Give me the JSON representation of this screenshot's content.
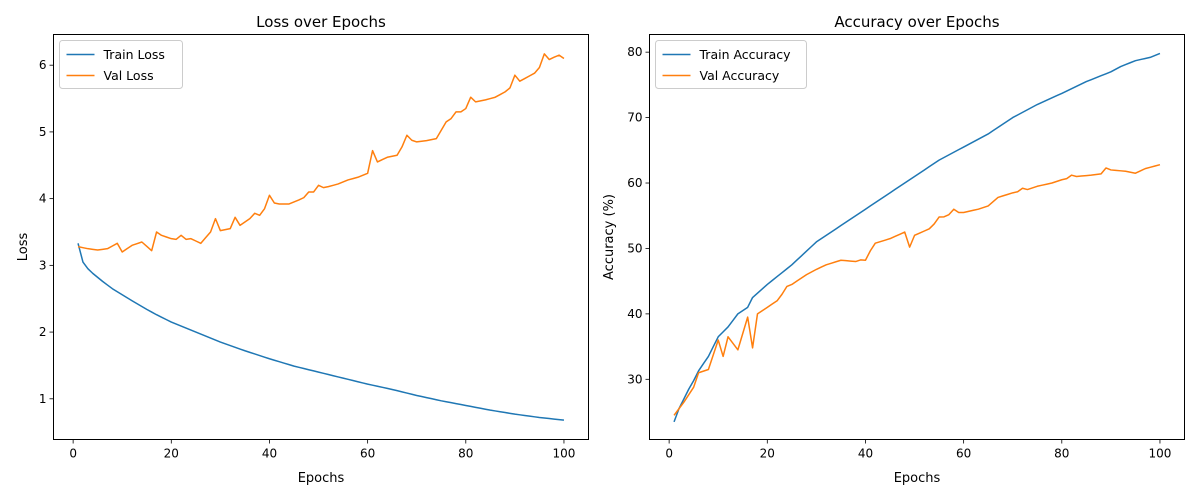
{
  "colors": {
    "train": "#1f77b4",
    "val": "#ff7f0e",
    "axes": "#000000",
    "legend_border": "#cccccc"
  },
  "chart_data": [
    {
      "type": "line",
      "title": "Loss over Epochs",
      "xlabel": "Epochs",
      "ylabel": "Loss",
      "xlim": [
        -4,
        105
      ],
      "ylim": [
        0.39,
        6.46
      ],
      "xticks": [
        0,
        20,
        40,
        60,
        80,
        100
      ],
      "yticks": [
        1,
        2,
        3,
        4,
        5,
        6
      ],
      "grid": false,
      "legend": "upper left",
      "series": [
        {
          "name": "Train Loss",
          "key": "train",
          "keypoints": [
            [
              1,
              3.33
            ],
            [
              2,
              3.05
            ],
            [
              3,
              2.95
            ],
            [
              4,
              2.88
            ],
            [
              5,
              2.82
            ],
            [
              6,
              2.76
            ],
            [
              8,
              2.65
            ],
            [
              10,
              2.56
            ],
            [
              12,
              2.47
            ],
            [
              15,
              2.34
            ],
            [
              17,
              2.26
            ],
            [
              20,
              2.15
            ],
            [
              25,
              2.0
            ],
            [
              30,
              1.85
            ],
            [
              35,
              1.72
            ],
            [
              40,
              1.6
            ],
            [
              45,
              1.49
            ],
            [
              50,
              1.4
            ],
            [
              55,
              1.31
            ],
            [
              60,
              1.22
            ],
            [
              65,
              1.14
            ],
            [
              70,
              1.05
            ],
            [
              75,
              0.97
            ],
            [
              80,
              0.9
            ],
            [
              85,
              0.83
            ],
            [
              90,
              0.77
            ],
            [
              95,
              0.72
            ],
            [
              100,
              0.68
            ]
          ]
        },
        {
          "name": "Val Loss",
          "key": "val",
          "keypoints": [
            [
              1,
              3.28
            ],
            [
              3,
              3.25
            ],
            [
              5,
              3.23
            ],
            [
              7,
              3.25
            ],
            [
              9,
              3.33
            ],
            [
              10,
              3.2
            ],
            [
              12,
              3.3
            ],
            [
              14,
              3.35
            ],
            [
              16,
              3.22
            ],
            [
              18,
              3.45
            ],
            [
              20,
              3.4
            ],
            [
              22,
              3.38
            ],
            [
              24,
              3.4
            ],
            [
              26,
              3.33
            ],
            [
              28,
              3.5
            ],
            [
              30,
              3.52
            ],
            [
              32,
              3.55
            ],
            [
              34,
              3.6
            ],
            [
              36,
              3.7
            ],
            [
              38,
              3.75
            ],
            [
              40,
              3.95
            ],
            [
              42,
              3.92
            ],
            [
              44,
              3.92
            ],
            [
              46,
              3.98
            ],
            [
              48,
              4.05
            ],
            [
              50,
              4.15
            ],
            [
              52,
              4.18
            ],
            [
              54,
              4.22
            ],
            [
              56,
              4.28
            ],
            [
              58,
              4.32
            ],
            [
              60,
              4.38
            ],
            [
              61,
              4.7
            ],
            [
              62,
              4.55
            ],
            [
              64,
              4.62
            ],
            [
              66,
              4.65
            ],
            [
              68,
              4.9
            ],
            [
              70,
              4.85
            ],
            [
              72,
              4.87
            ],
            [
              74,
              4.9
            ],
            [
              76,
              5.15
            ],
            [
              78,
              5.25
            ],
            [
              80,
              5.35
            ],
            [
              82,
              5.45
            ],
            [
              84,
              5.48
            ],
            [
              86,
              5.52
            ],
            [
              88,
              5.6
            ],
            [
              90,
              5.72
            ],
            [
              92,
              5.8
            ],
            [
              94,
              5.88
            ],
            [
              96,
              6.05
            ],
            [
              98,
              6.12
            ],
            [
              100,
              6.1
            ]
          ],
          "spikes": [
            [
              17,
              3.5
            ],
            [
              22,
              3.45
            ],
            [
              29,
              3.7
            ],
            [
              33,
              3.72
            ],
            [
              37,
              3.78
            ],
            [
              40,
              4.05
            ],
            [
              48,
              4.1
            ],
            [
              50,
              4.2
            ],
            [
              61,
              4.72
            ],
            [
              68,
              4.95
            ],
            [
              78,
              5.3
            ],
            [
              81,
              5.52
            ],
            [
              90,
              5.85
            ],
            [
              96,
              6.17
            ],
            [
              99,
              6.15
            ]
          ]
        }
      ]
    },
    {
      "type": "line",
      "title": "Accuracy over Epochs",
      "xlabel": "Epochs",
      "ylabel": "Accuracy (%)",
      "xlim": [
        -4,
        105
      ],
      "ylim": [
        20.8,
        82.7
      ],
      "xticks": [
        0,
        20,
        40,
        60,
        80,
        100
      ],
      "yticks": [
        30,
        40,
        50,
        60,
        70,
        80
      ],
      "grid": false,
      "legend": "upper left",
      "series": [
        {
          "name": "Train Accuracy",
          "key": "train",
          "keypoints": [
            [
              1,
              23.5
            ],
            [
              2,
              25.5
            ],
            [
              3,
              27.0
            ],
            [
              4,
              28.5
            ],
            [
              5,
              29.8
            ],
            [
              6,
              31.3
            ],
            [
              8,
              33.5
            ],
            [
              10,
              36.5
            ],
            [
              12,
              38.0
            ],
            [
              14,
              40.0
            ],
            [
              16,
              41.0
            ],
            [
              17,
              42.5
            ],
            [
              20,
              44.5
            ],
            [
              25,
              47.5
            ],
            [
              30,
              51.0
            ],
            [
              35,
              53.5
            ],
            [
              40,
              56.0
            ],
            [
              45,
              58.5
            ],
            [
              50,
              61.0
            ],
            [
              55,
              63.5
            ],
            [
              60,
              65.5
            ],
            [
              65,
              67.5
            ],
            [
              70,
              70.0
            ],
            [
              75,
              72.0
            ],
            [
              80,
              73.7
            ],
            [
              85,
              75.5
            ],
            [
              90,
              77.0
            ],
            [
              92,
              77.8
            ],
            [
              95,
              78.7
            ],
            [
              98,
              79.2
            ],
            [
              100,
              79.8
            ]
          ]
        },
        {
          "name": "Val Accuracy",
          "key": "val",
          "keypoints": [
            [
              1,
              24.5
            ],
            [
              3,
              26.5
            ],
            [
              5,
              28.8
            ],
            [
              6,
              31.0
            ],
            [
              8,
              31.5
            ],
            [
              10,
              36.0
            ],
            [
              11,
              33.5
            ],
            [
              12,
              36.5
            ],
            [
              14,
              34.5
            ],
            [
              16,
              39.5
            ],
            [
              17,
              35.0
            ],
            [
              18,
              40.0
            ],
            [
              20,
              41.0
            ],
            [
              22,
              42.0
            ],
            [
              24,
              44.0
            ],
            [
              26,
              45.0
            ],
            [
              28,
              46.0
            ],
            [
              30,
              46.8
            ],
            [
              32,
              47.5
            ],
            [
              35,
              48.2
            ],
            [
              38,
              48.0
            ],
            [
              40,
              48.5
            ],
            [
              42,
              50.8
            ],
            [
              45,
              51.5
            ],
            [
              48,
              52.5
            ],
            [
              49,
              50.2
            ],
            [
              50,
              52.0
            ],
            [
              53,
              53.0
            ],
            [
              55,
              54.5
            ],
            [
              58,
              55.5
            ],
            [
              60,
              55.5
            ],
            [
              63,
              56.0
            ],
            [
              65,
              56.5
            ],
            [
              67,
              57.8
            ],
            [
              70,
              58.5
            ],
            [
              73,
              59.0
            ],
            [
              75,
              59.5
            ],
            [
              78,
              60.0
            ],
            [
              80,
              60.5
            ],
            [
              83,
              61.0
            ],
            [
              86,
              61.2
            ],
            [
              89,
              61.5
            ],
            [
              90,
              62.0
            ],
            [
              93,
              61.8
            ],
            [
              95,
              61.5
            ],
            [
              97,
              62.2
            ],
            [
              100,
              62.8
            ]
          ],
          "spikes": [
            [
              16,
              39.5
            ],
            [
              17,
              34.8
            ],
            [
              24,
              44.2
            ],
            [
              40,
              48.2
            ],
            [
              49,
              50.2
            ],
            [
              55,
              54.8
            ],
            [
              58,
              56.0
            ],
            [
              72,
              59.2
            ],
            [
              82,
              61.2
            ],
            [
              89,
              62.3
            ]
          ]
        }
      ]
    }
  ]
}
